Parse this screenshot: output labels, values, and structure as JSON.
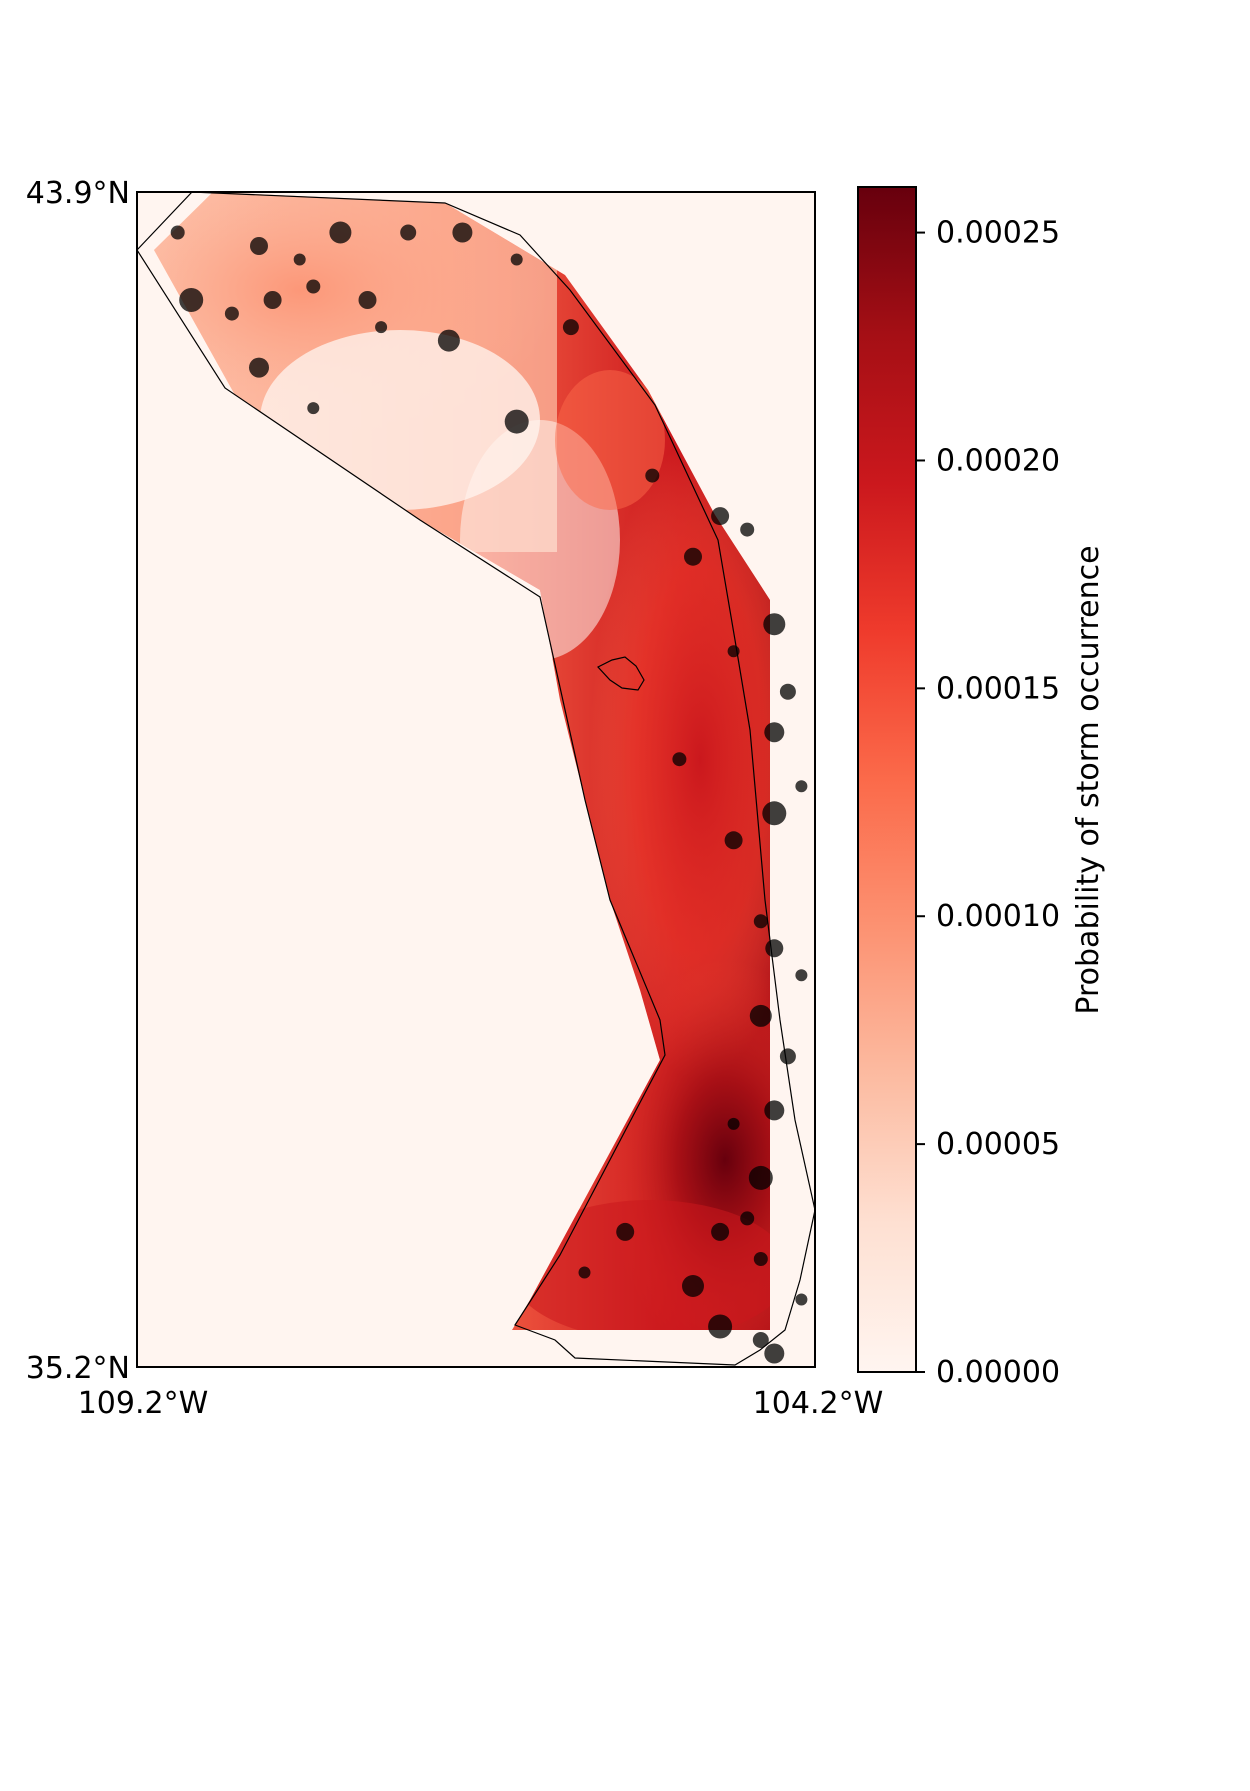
{
  "map": {
    "lat_top_label": "43.9°N",
    "lat_bottom_label": "35.2°N",
    "lon_left_label": "109.2°W",
    "lon_right_label": "104.2°W",
    "lat_range": [
      35.2,
      43.9
    ],
    "lon_range": [
      -109.2,
      -104.2
    ],
    "background_color": "#fff5f0",
    "marker_color": "#000000",
    "marker_opacity": 0.75
  },
  "colorbar": {
    "label": "Probability of storm occurrence",
    "colormap": "Reds",
    "vmin": 0.0,
    "vmax": 0.00026,
    "tick_labels": [
      "0.00000",
      "0.00005",
      "0.00010",
      "0.00015",
      "0.00020",
      "0.00025"
    ],
    "tick_values": [
      0.0,
      5e-05,
      0.0001,
      0.00015,
      0.0002,
      0.00025
    ],
    "colors": [
      "#fff5f0",
      "#fee0d2",
      "#fcbba1",
      "#fc9272",
      "#fb6a4a",
      "#ef3b2c",
      "#cb181d",
      "#a50f15",
      "#67000d"
    ]
  },
  "chart_data": {
    "type": "heatmap",
    "title": "",
    "xlabel": "",
    "ylabel": "",
    "xlim": [
      -109.2,
      -104.2
    ],
    "ylim": [
      35.2,
      43.9
    ],
    "value_range": [
      0.0,
      0.00026
    ],
    "storm_points_lonlat": [
      [
        -108.9,
        43.6
      ],
      [
        -108.3,
        43.5
      ],
      [
        -108.0,
        43.4
      ],
      [
        -107.7,
        43.6
      ],
      [
        -107.2,
        43.6
      ],
      [
        -106.8,
        43.6
      ],
      [
        -106.4,
        43.4
      ],
      [
        -108.8,
        43.1
      ],
      [
        -108.5,
        43.0
      ],
      [
        -108.2,
        43.1
      ],
      [
        -107.9,
        43.2
      ],
      [
        -107.5,
        43.1
      ],
      [
        -107.4,
        42.9
      ],
      [
        -106.9,
        42.8
      ],
      [
        -106.0,
        42.9
      ],
      [
        -108.3,
        42.6
      ],
      [
        -107.9,
        42.3
      ],
      [
        -106.4,
        42.2
      ],
      [
        -105.4,
        41.8
      ],
      [
        -104.9,
        41.5
      ],
      [
        -104.7,
        41.4
      ],
      [
        -105.1,
        41.2
      ],
      [
        -104.8,
        40.5
      ],
      [
        -104.5,
        40.7
      ],
      [
        -104.4,
        40.2
      ],
      [
        -104.5,
        39.9
      ],
      [
        -104.3,
        39.5
      ],
      [
        -104.5,
        39.3
      ],
      [
        -105.2,
        39.7
      ],
      [
        -104.8,
        39.1
      ],
      [
        -104.6,
        38.5
      ],
      [
        -104.5,
        38.3
      ],
      [
        -104.3,
        38.1
      ],
      [
        -104.6,
        37.8
      ],
      [
        -104.4,
        37.5
      ],
      [
        -104.5,
        37.1
      ],
      [
        -104.8,
        37.0
      ],
      [
        -104.6,
        36.6
      ],
      [
        -104.7,
        36.3
      ],
      [
        -104.9,
        36.2
      ],
      [
        -104.6,
        36.0
      ],
      [
        -105.6,
        36.2
      ],
      [
        -105.9,
        35.9
      ],
      [
        -105.1,
        35.8
      ],
      [
        -104.6,
        35.4
      ],
      [
        -104.5,
        35.3
      ],
      [
        -104.3,
        35.7
      ],
      [
        -104.9,
        35.5
      ]
    ]
  }
}
